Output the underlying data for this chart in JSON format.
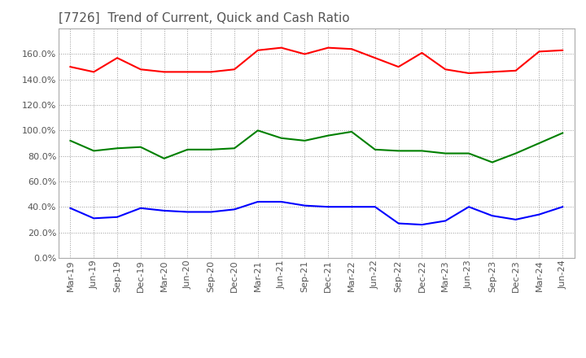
{
  "title": "[7726]  Trend of Current, Quick and Cash Ratio",
  "x_labels": [
    "Mar-19",
    "Jun-19",
    "Sep-19",
    "Dec-19",
    "Mar-20",
    "Jun-20",
    "Sep-20",
    "Dec-20",
    "Mar-21",
    "Jun-21",
    "Sep-21",
    "Dec-21",
    "Mar-22",
    "Jun-22",
    "Sep-22",
    "Dec-22",
    "Mar-23",
    "Jun-23",
    "Sep-23",
    "Dec-23",
    "Mar-24",
    "Jun-24"
  ],
  "current_ratio": [
    1.5,
    1.46,
    1.57,
    1.48,
    1.46,
    1.46,
    1.46,
    1.48,
    1.63,
    1.65,
    1.6,
    1.65,
    1.64,
    1.57,
    1.5,
    1.61,
    1.48,
    1.45,
    1.46,
    1.47,
    1.62,
    1.63
  ],
  "quick_ratio": [
    0.92,
    0.84,
    0.86,
    0.87,
    0.78,
    0.85,
    0.85,
    0.86,
    1.0,
    0.94,
    0.92,
    0.96,
    0.99,
    0.85,
    0.84,
    0.84,
    0.82,
    0.82,
    0.75,
    0.82,
    0.9,
    0.98
  ],
  "cash_ratio": [
    0.39,
    0.31,
    0.32,
    0.39,
    0.37,
    0.36,
    0.36,
    0.38,
    0.44,
    0.44,
    0.41,
    0.4,
    0.4,
    0.4,
    0.27,
    0.26,
    0.29,
    0.4,
    0.33,
    0.3,
    0.34,
    0.4
  ],
  "current_color": "#FF0000",
  "quick_color": "#008000",
  "cash_color": "#0000FF",
  "ylim": [
    0.0,
    1.8
  ],
  "yticks": [
    0.0,
    0.2,
    0.4,
    0.6,
    0.8,
    1.0,
    1.2,
    1.4,
    1.6
  ],
  "background_color": "#FFFFFF",
  "grid_color": "#999999",
  "title_fontsize": 11,
  "legend_fontsize": 9,
  "axis_fontsize": 8
}
